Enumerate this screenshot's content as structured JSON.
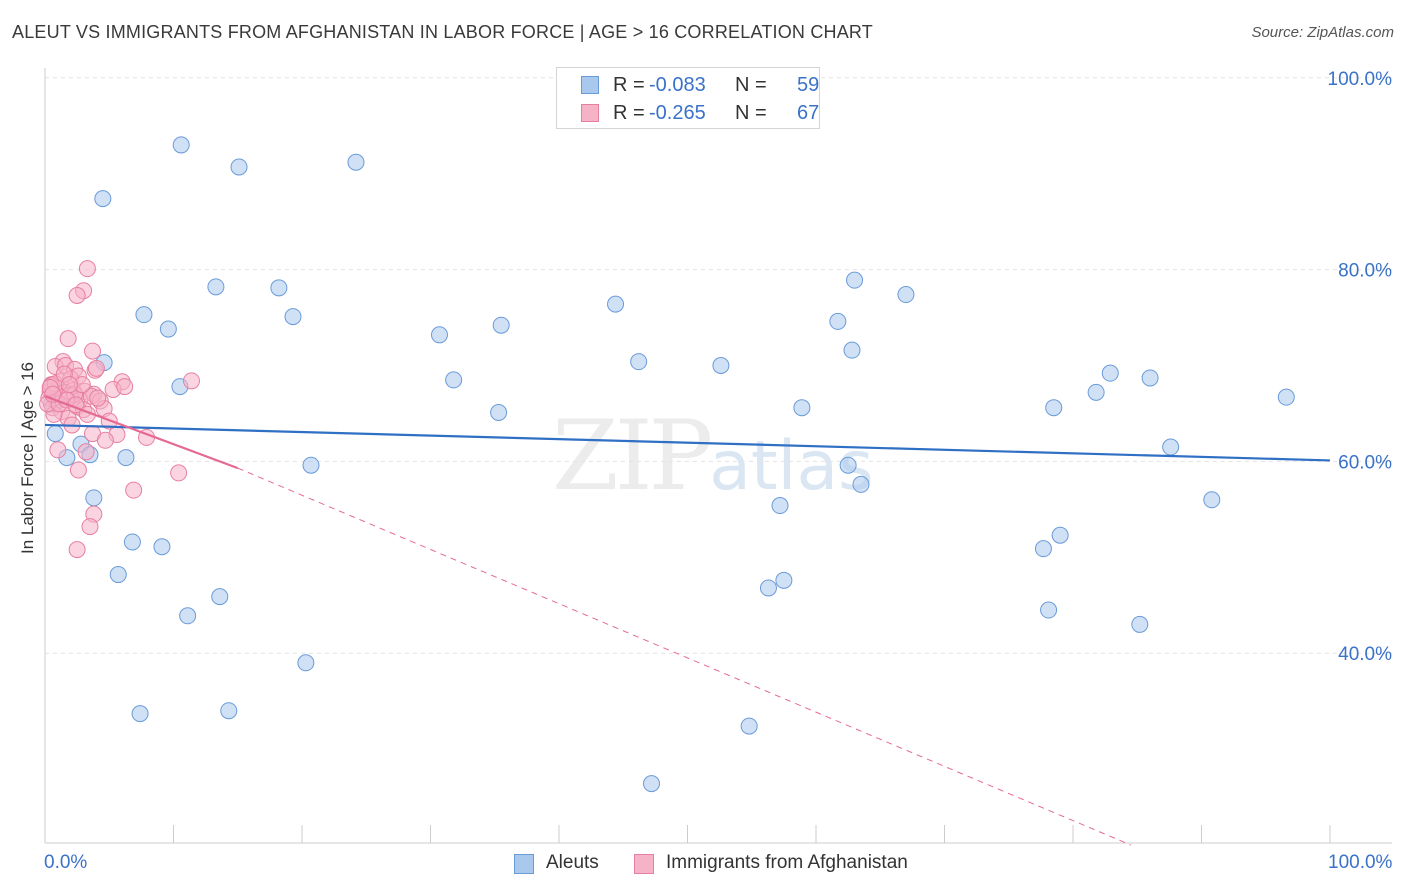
{
  "title": "ALEUT VS IMMIGRANTS FROM AFGHANISTAN IN LABOR FORCE | AGE > 16 CORRELATION CHART",
  "source": "Source: ZipAtlas.com",
  "watermark": {
    "zip": "ZIP",
    "atlas": "atlas"
  },
  "legend": {
    "rows": [
      {
        "r_label": "R =",
        "r_value": "-0.083",
        "n_label": "N =",
        "n_value": "59"
      },
      {
        "r_label": "R =",
        "r_value": "-0.265",
        "n_label": "N =",
        "n_value": "67"
      }
    ]
  },
  "bottom_legend": {
    "aleuts": "Aleuts",
    "afghan": "Immigrants from Afghanistan"
  },
  "x_tick_labels": {
    "left": "0.0%",
    "right": "100.0%"
  },
  "colors": {
    "aleut_fill": "#a9c8ee",
    "aleut_stroke": "#6a9bd8",
    "aleut_line": "#2f6fc4",
    "afghan_fill": "#f6b3c8",
    "afghan_stroke": "#e87fa0",
    "afghan_line": "#e56a93",
    "axis_text": "#3a72c8",
    "grid": "#e3e3e3"
  },
  "chart_data": {
    "type": "scatter",
    "title": "ALEUT VS IMMIGRANTS FROM AFGHANISTAN IN LABOR FORCE | AGE > 16 CORRELATION CHART",
    "xlabel": "",
    "ylabel": "In Labor Force | Age > 16",
    "xlim": [
      0,
      100
    ],
    "ylim": [
      20,
      100
    ],
    "y_ticks": [
      40,
      60,
      80,
      100
    ],
    "y_tick_labels": [
      "40.0%",
      "60.0%",
      "80.0%",
      "100.0%"
    ],
    "grid": true,
    "legend_position": "top-center",
    "series": [
      {
        "name": "Aleuts",
        "r": -0.083,
        "n": 59,
        "trend": {
          "x": [
            0,
            100
          ],
          "y": [
            63.8,
            60.1
          ]
        },
        "points": [
          [
            10.6,
            93.0
          ],
          [
            15.1,
            90.7
          ],
          [
            24.2,
            91.2
          ],
          [
            4.5,
            87.4
          ],
          [
            13.3,
            78.2
          ],
          [
            18.2,
            78.1
          ],
          [
            7.7,
            75.3
          ],
          [
            19.3,
            75.1
          ],
          [
            9.6,
            73.8
          ],
          [
            30.7,
            73.2
          ],
          [
            35.5,
            74.2
          ],
          [
            52.6,
            70.0
          ],
          [
            4.6,
            70.3
          ],
          [
            10.5,
            67.8
          ],
          [
            31.8,
            68.5
          ],
          [
            35.3,
            65.1
          ],
          [
            44.4,
            76.4
          ],
          [
            46.2,
            70.4
          ],
          [
            61.7,
            74.6
          ],
          [
            67.0,
            77.4
          ],
          [
            63.0,
            78.9
          ],
          [
            62.8,
            71.6
          ],
          [
            82.9,
            69.2
          ],
          [
            81.8,
            67.2
          ],
          [
            86.0,
            68.7
          ],
          [
            96.6,
            66.7
          ],
          [
            62.5,
            59.6
          ],
          [
            63.5,
            57.6
          ],
          [
            78.5,
            65.6
          ],
          [
            58.9,
            65.6
          ],
          [
            87.6,
            61.5
          ],
          [
            1.7,
            60.4
          ],
          [
            2.8,
            61.8
          ],
          [
            3.5,
            60.7
          ],
          [
            6.3,
            60.4
          ],
          [
            20.7,
            59.6
          ],
          [
            3.8,
            56.2
          ],
          [
            90.8,
            56.0
          ],
          [
            57.2,
            55.4
          ],
          [
            6.8,
            51.6
          ],
          [
            9.1,
            51.1
          ],
          [
            79.0,
            52.3
          ],
          [
            77.7,
            50.9
          ],
          [
            5.7,
            48.2
          ],
          [
            56.3,
            46.8
          ],
          [
            57.5,
            47.6
          ],
          [
            11.1,
            43.9
          ],
          [
            13.6,
            45.9
          ],
          [
            78.1,
            44.5
          ],
          [
            85.2,
            43.0
          ],
          [
            20.3,
            39.0
          ],
          [
            7.4,
            33.7
          ],
          [
            14.3,
            34.0
          ],
          [
            54.8,
            32.4
          ],
          [
            47.2,
            26.4
          ],
          [
            0.8,
            62.9
          ],
          [
            1.5,
            67.2
          ],
          [
            2.0,
            66.8
          ],
          [
            0.5,
            66.0
          ]
        ]
      },
      {
        "name": "Immigrants from Afghanistan",
        "r": -0.265,
        "n": 67,
        "trend": {
          "x": [
            0,
            15
          ],
          "y": [
            66.8,
            59.3
          ],
          "dashed_extension": {
            "x": [
              15,
              84.5
            ],
            "y": [
              59.3,
              20.0
            ]
          }
        },
        "points": [
          [
            3.3,
            80.1
          ],
          [
            3.0,
            77.8
          ],
          [
            2.5,
            77.3
          ],
          [
            1.8,
            72.8
          ],
          [
            3.7,
            71.5
          ],
          [
            1.4,
            70.4
          ],
          [
            0.8,
            69.9
          ],
          [
            1.6,
            70.0
          ],
          [
            2.3,
            69.6
          ],
          [
            3.9,
            69.5
          ],
          [
            4.0,
            69.7
          ],
          [
            0.5,
            68.0
          ],
          [
            1.2,
            68.3
          ],
          [
            2.0,
            68.6
          ],
          [
            2.6,
            68.9
          ],
          [
            6.0,
            68.3
          ],
          [
            11.4,
            68.4
          ],
          [
            0.4,
            67.3
          ],
          [
            1.0,
            67.6
          ],
          [
            1.6,
            67.2
          ],
          [
            2.2,
            67.4
          ],
          [
            3.1,
            67.3
          ],
          [
            3.8,
            67.0
          ],
          [
            5.3,
            67.5
          ],
          [
            0.3,
            66.6
          ],
          [
            0.9,
            66.2
          ],
          [
            1.4,
            66.7
          ],
          [
            1.9,
            66.9
          ],
          [
            2.7,
            66.4
          ],
          [
            3.6,
            66.8
          ],
          [
            4.3,
            66.3
          ],
          [
            0.6,
            65.6
          ],
          [
            1.3,
            65.2
          ],
          [
            2.5,
            65.7
          ],
          [
            3.0,
            65.4
          ],
          [
            4.6,
            65.5
          ],
          [
            1.8,
            64.5
          ],
          [
            5.0,
            64.2
          ],
          [
            0.7,
            64.9
          ],
          [
            2.1,
            63.8
          ],
          [
            3.7,
            62.9
          ],
          [
            5.6,
            62.8
          ],
          [
            7.9,
            62.5
          ],
          [
            4.7,
            62.2
          ],
          [
            1.0,
            61.2
          ],
          [
            3.2,
            61.0
          ],
          [
            2.6,
            59.1
          ],
          [
            10.4,
            58.8
          ],
          [
            6.9,
            57.0
          ],
          [
            3.8,
            54.5
          ],
          [
            3.5,
            53.2
          ],
          [
            2.5,
            50.8
          ],
          [
            0.2,
            66.0
          ],
          [
            0.5,
            67.9
          ],
          [
            1.1,
            66.0
          ],
          [
            2.3,
            67.0
          ],
          [
            2.9,
            68.0
          ],
          [
            0.8,
            68.1
          ],
          [
            4.1,
            66.6
          ],
          [
            1.5,
            69.1
          ],
          [
            0.4,
            67.7
          ],
          [
            1.7,
            66.4
          ],
          [
            2.4,
            65.9
          ],
          [
            3.3,
            64.9
          ],
          [
            0.6,
            67.0
          ],
          [
            1.9,
            68.0
          ],
          [
            6.2,
            67.8
          ]
        ]
      }
    ]
  }
}
